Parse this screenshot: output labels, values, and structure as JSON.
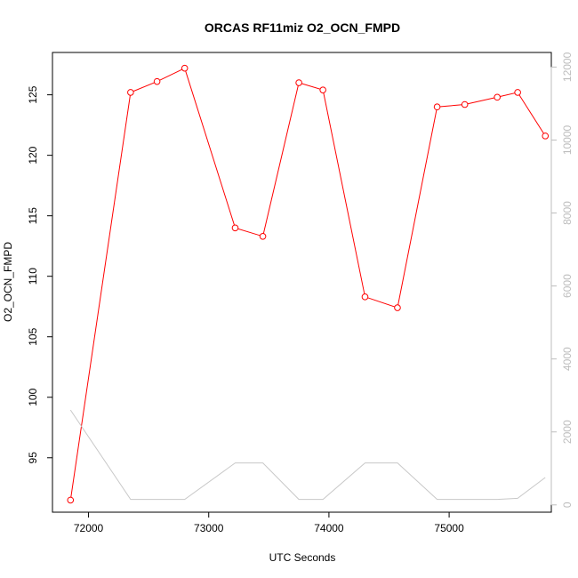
{
  "chart_data": {
    "type": "line",
    "title": "ORCAS RF11miz O2_OCN_FMPD",
    "xlabel": "UTC Seconds",
    "ylabel": "O2_OCN_FMPD",
    "xlim": [
      71700,
      75850
    ],
    "ylim": [
      90.5,
      128.5
    ],
    "y2lim": [
      -200,
      12400
    ],
    "x_ticks": [
      72000,
      73000,
      74000,
      75000
    ],
    "y_ticks": [
      95,
      100,
      105,
      110,
      115,
      120,
      125
    ],
    "y2_ticks": [
      0,
      2000,
      4000,
      6000,
      8000,
      10000,
      12000
    ],
    "series": [
      {
        "color": "#ff0000",
        "axis": "left",
        "markers": "open-circle",
        "x": [
          71850,
          72350,
          72570,
          72800,
          73220,
          73450,
          73750,
          73950,
          74300,
          74570,
          74900,
          75130,
          75400,
          75570,
          75800
        ],
        "y": [
          91.5,
          125.2,
          126.1,
          127.2,
          114.0,
          113.3,
          126.0,
          125.4,
          108.3,
          107.4,
          124.0,
          124.2,
          124.8,
          125.2,
          121.6
        ]
      },
      {
        "color": "#c8c8c8",
        "axis": "right",
        "markers": "none",
        "x": [
          71850,
          72350,
          72570,
          72800,
          73220,
          73450,
          73750,
          73950,
          74300,
          74570,
          74900,
          75130,
          75400,
          75570,
          75800
        ],
        "y": [
          2600,
          150,
          150,
          150,
          1150,
          1150,
          150,
          150,
          1150,
          1150,
          150,
          150,
          150,
          180,
          750
        ]
      }
    ]
  }
}
